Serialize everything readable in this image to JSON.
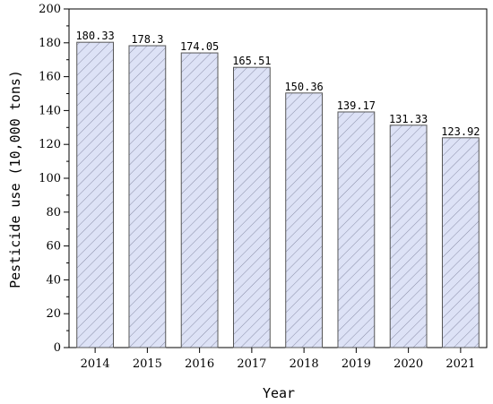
{
  "chart_data": {
    "type": "bar",
    "title": "",
    "xlabel": "Year",
    "ylabel": "Pesticide use (10,000 tons)",
    "categories": [
      "2014",
      "2015",
      "2016",
      "2017",
      "2018",
      "2019",
      "2020",
      "2021"
    ],
    "values": [
      180.33,
      178.3,
      174.05,
      165.51,
      150.36,
      139.17,
      131.33,
      123.92
    ],
    "value_labels": [
      "180.33",
      "178.3",
      "174.05",
      "165.51",
      "150.36",
      "139.17",
      "131.33",
      "123.92"
    ],
    "ylim": [
      0,
      200
    ],
    "yticks": [
      0,
      20,
      40,
      60,
      80,
      100,
      120,
      140,
      160,
      180,
      200
    ],
    "grid": false,
    "legend": "none",
    "bar_fill": "#dde2f6",
    "bar_hatch": "diagonal",
    "bar_stroke": "#555555"
  }
}
